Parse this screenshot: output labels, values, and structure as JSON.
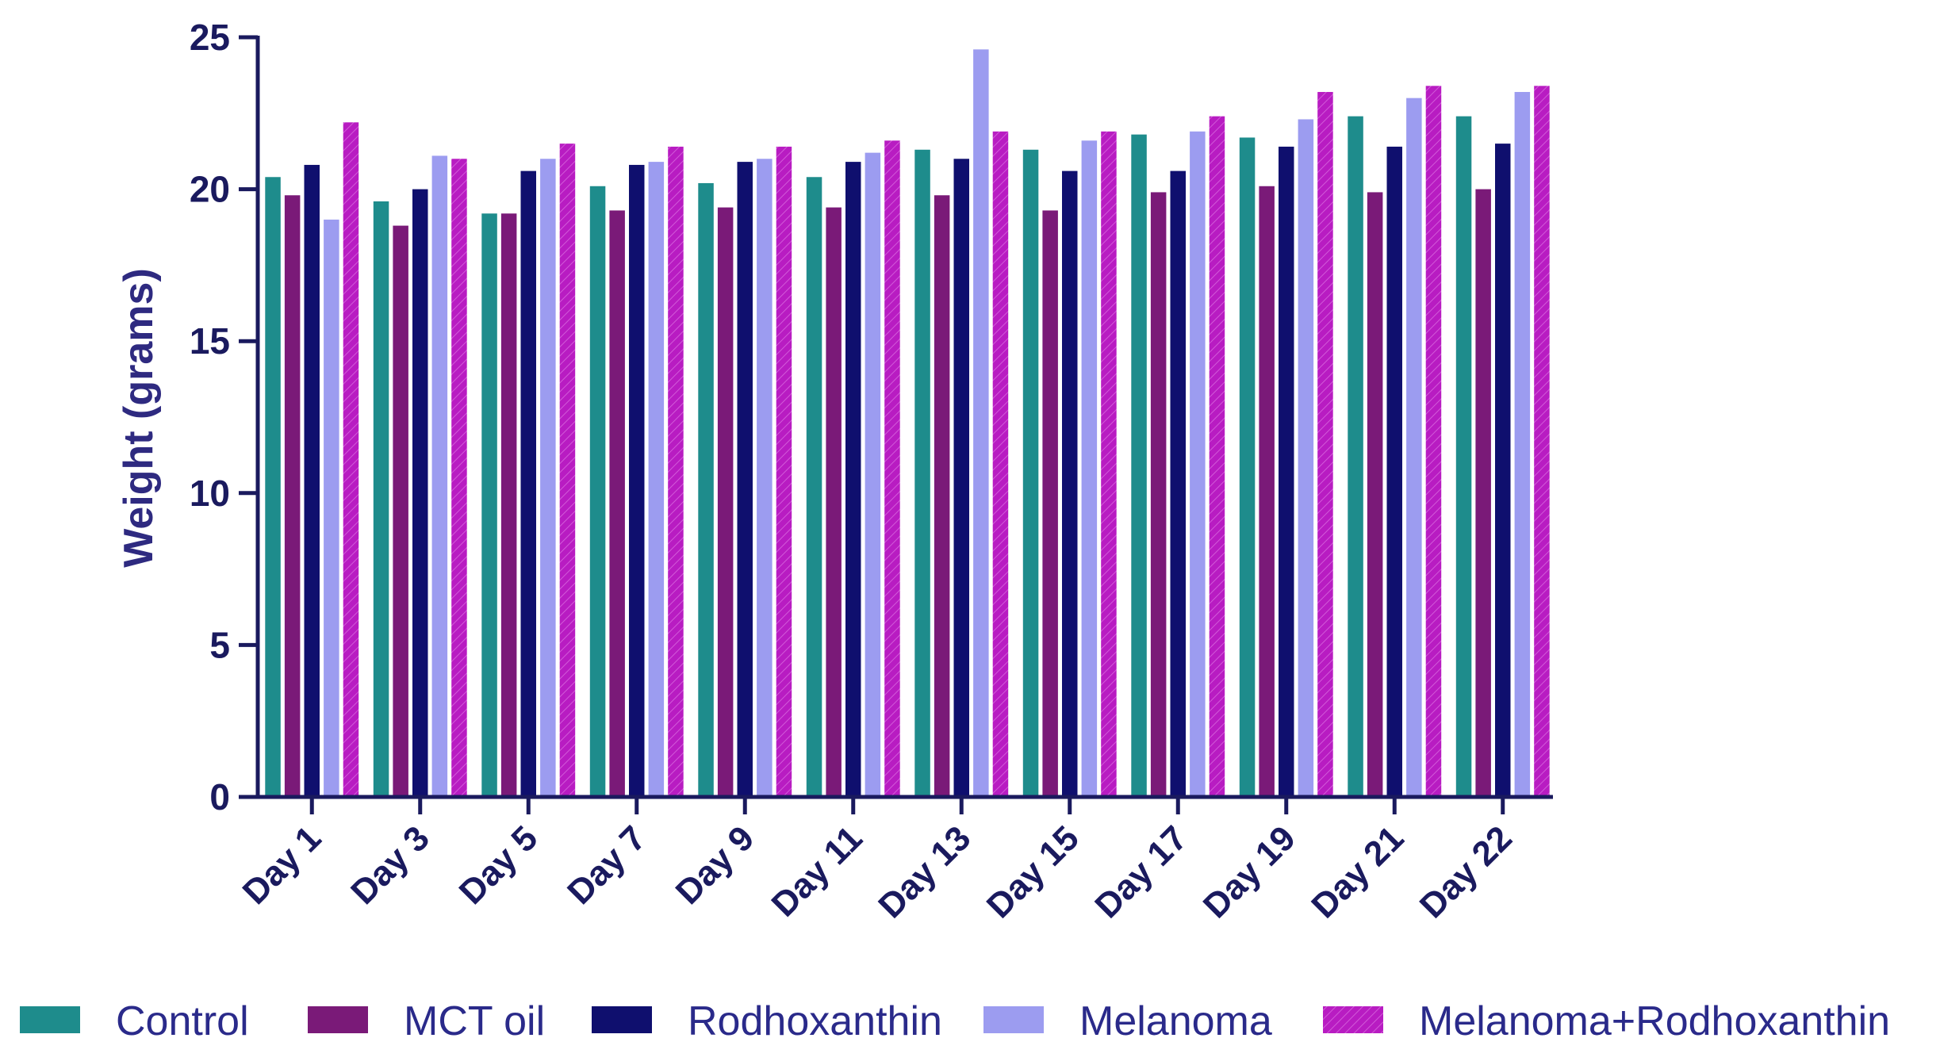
{
  "chart_data": {
    "type": "bar",
    "title": "",
    "xlabel": "",
    "ylabel": "Weight (grams)",
    "ylim": [
      0,
      25
    ],
    "yticks": [
      0,
      5,
      10,
      15,
      20,
      25
    ],
    "categories": [
      "Day 1",
      "Day 3",
      "Day 5",
      "Day 7",
      "Day 9",
      "Day 11",
      "Day 13",
      "Day 15",
      "Day 17",
      "Day 19",
      "Day 21",
      "Day 22"
    ],
    "series": [
      {
        "name": "Control",
        "color": "#1e8c8c",
        "values": [
          20.4,
          19.6,
          19.2,
          20.1,
          20.2,
          20.4,
          21.3,
          21.3,
          21.8,
          21.7,
          22.4,
          22.4
        ]
      },
      {
        "name": "MCT oil",
        "color": "#7a1a78",
        "values": [
          19.8,
          18.8,
          19.2,
          19.3,
          19.4,
          19.4,
          19.8,
          19.3,
          19.9,
          20.1,
          19.9,
          20.0
        ]
      },
      {
        "name": "Rodhoxanthin",
        "color": "#0f0f6e",
        "values": [
          20.8,
          20.0,
          20.6,
          20.8,
          20.9,
          20.9,
          21.0,
          20.6,
          20.6,
          21.4,
          21.4,
          21.5
        ]
      },
      {
        "name": "Melanoma",
        "color": "#9c9cf0",
        "values": [
          19.0,
          21.1,
          21.0,
          20.9,
          21.0,
          21.2,
          24.6,
          21.6,
          21.9,
          22.3,
          23.0,
          23.2
        ]
      },
      {
        "name": "Melanoma+Rodhoxanthin",
        "color": "#b81cc2",
        "values": [
          22.2,
          21.0,
          21.5,
          21.4,
          21.4,
          21.6,
          21.9,
          21.9,
          22.4,
          23.2,
          23.4,
          23.4
        ]
      }
    ]
  }
}
